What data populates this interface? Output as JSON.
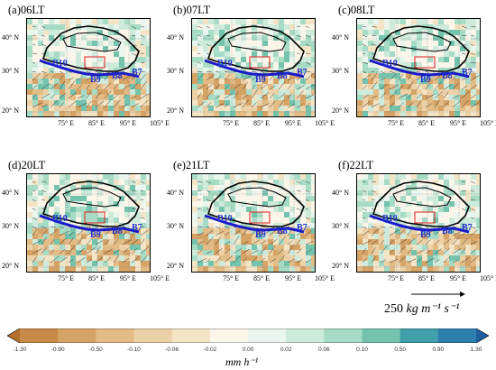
{
  "panels": [
    {
      "title": "(a)06LT"
    },
    {
      "title": "(b)07LT"
    },
    {
      "title": "(c)08LT"
    },
    {
      "title": "(d)20LT"
    },
    {
      "title": "(e)21LT"
    },
    {
      "title": "(f)22LT"
    }
  ],
  "lat_labels": [
    "40° N",
    "30° N",
    "20° N"
  ],
  "lon_labels": [
    "75° E",
    "85° E",
    "95° E",
    "105° E"
  ],
  "basin_labels": [
    "B10",
    "B9",
    "B8",
    "B7"
  ],
  "reference_vector": {
    "value": "250",
    "units": "kg m⁻¹ s⁻¹"
  },
  "colorbar": {
    "ticks": [
      "-1.30",
      "-0.90",
      "-0.50",
      "-0.10",
      "-0.06",
      "-0.02",
      "0.00",
      "0.02",
      "0.06",
      "0.10",
      "0.50",
      "0.90",
      "1.30"
    ],
    "units": "mm h⁻¹",
    "colors": [
      "#b5702c",
      "#c88a47",
      "#d6a366",
      "#e2bb85",
      "#ecd1a6",
      "#f4e4c6",
      "#fbf5ea",
      "#eaf5ee",
      "#cdeadb",
      "#a6dbc5",
      "#74c4ad",
      "#3f9fab",
      "#2d7fae",
      "#1f5fa0"
    ]
  },
  "colors": {
    "plateau_outline": "#000000",
    "river": "#1a1acc",
    "box": "#e02020",
    "basin_text": "#1f33cc"
  },
  "chart_data": {
    "type": "heatmap",
    "panels": [
      "(a)06LT",
      "(b)07LT",
      "(c)08LT",
      "(d)20LT",
      "(e)21LT",
      "(f)22LT"
    ],
    "x_ticks": [
      "75° E",
      "85° E",
      "95° E",
      "105° E"
    ],
    "y_ticks": [
      "40° N",
      "30° N",
      "20° N"
    ],
    "colorbar_ticks": [
      -1.3,
      -0.9,
      -0.5,
      -0.1,
      -0.06,
      -0.02,
      0.0,
      0.02,
      0.06,
      0.1,
      0.5,
      0.9,
      1.3
    ],
    "colorbar_units": "mm h⁻¹",
    "reference_vector": 250,
    "reference_vector_units": "kg m⁻¹ s⁻¹"
  }
}
